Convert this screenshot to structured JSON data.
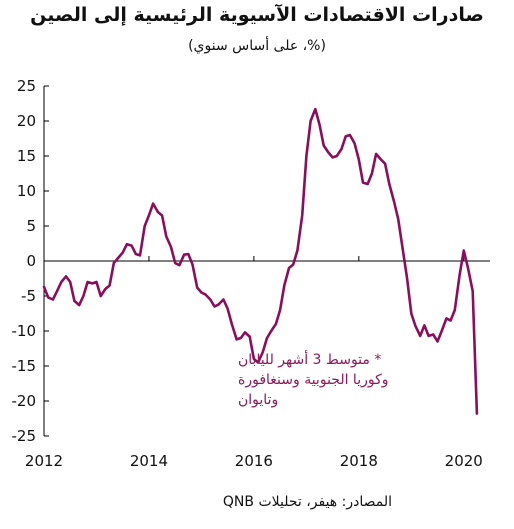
{
  "title": "صادرات الاقتصادات الآسيوية الرئيسية إلى الصين",
  "subtitle": "(%، على أساس سنوي)",
  "source": "المصادر: هيفر، تحليلات QNB",
  "colors": {
    "series": "#8b0e5c",
    "axis": "#000000",
    "annotation": "#8a1a5a"
  },
  "chart_data": {
    "type": "line",
    "title": "صادرات الاقتصادات الآسيوية الرئيسية إلى الصين",
    "subtitle": "(%، على أساس سنوي)",
    "ylim": [
      -25,
      25
    ],
    "xlim": [
      2012,
      2020.5
    ],
    "yticks": [
      25,
      20,
      15,
      10,
      5,
      0,
      -5,
      -10,
      -15,
      -20,
      -25
    ],
    "xticks": [
      2012,
      2014,
      2016,
      2018,
      2020
    ],
    "grid": false,
    "annotation": [
      "* متوسط 3 أشهر لليابان",
      "وكوريا الجنوبية وسنغافورة",
      "وتايوان"
    ],
    "series": [
      {
        "x": [
          2012.0,
          2012.08,
          2012.17,
          2012.25,
          2012.33,
          2012.42,
          2012.5,
          2012.58,
          2012.67,
          2012.75,
          2012.83,
          2012.92,
          2013.0,
          2013.08,
          2013.17,
          2013.25,
          2013.33,
          2013.42,
          2013.5,
          2013.58,
          2013.67,
          2013.75,
          2013.83,
          2013.92,
          2014.0,
          2014.08,
          2014.17,
          2014.25,
          2014.33,
          2014.42,
          2014.5,
          2014.58,
          2014.67,
          2014.75,
          2014.83,
          2014.92,
          2015.0,
          2015.08,
          2015.17,
          2015.25,
          2015.33,
          2015.42,
          2015.5,
          2015.58,
          2015.67,
          2015.75,
          2015.83,
          2015.92,
          2016.0,
          2016.08,
          2016.17,
          2016.25,
          2016.33,
          2016.42,
          2016.5,
          2016.58,
          2016.67,
          2016.75,
          2016.83,
          2016.92,
          2017.0,
          2017.08,
          2017.17,
          2017.25,
          2017.33,
          2017.42,
          2017.5,
          2017.58,
          2017.67,
          2017.75,
          2017.83,
          2017.92,
          2018.0,
          2018.08,
          2018.17,
          2018.25,
          2018.33,
          2018.42,
          2018.5,
          2018.58,
          2018.67,
          2018.75,
          2018.83,
          2018.92,
          2019.0,
          2019.08,
          2019.17,
          2019.25,
          2019.33,
          2019.42,
          2019.5,
          2019.58,
          2019.67,
          2019.75,
          2019.83,
          2019.92,
          2020.0,
          2020.08,
          2020.17,
          2020.25
        ],
        "values": [
          -3.7,
          -5.2,
          -5.5,
          -4.3,
          -3.0,
          -2.2,
          -3.0,
          -5.7,
          -6.3,
          -5.0,
          -3.0,
          -3.2,
          -3.0,
          -5.0,
          -4.0,
          -3.5,
          -0.3,
          0.5,
          1.2,
          2.4,
          2.2,
          1.0,
          0.8,
          5.0,
          6.5,
          8.2,
          7.0,
          6.5,
          3.5,
          2.0,
          -0.3,
          -0.6,
          0.9,
          1.0,
          -0.5,
          -3.8,
          -4.5,
          -4.8,
          -5.5,
          -6.5,
          -6.2,
          -5.5,
          -6.8,
          -9.0,
          -11.2,
          -11.0,
          -10.2,
          -10.8,
          -14.0,
          -14.5,
          -13.0,
          -11.0,
          -10.0,
          -9.0,
          -7.0,
          -3.5,
          -1.0,
          -0.5,
          1.5,
          6.5,
          15.0,
          20.0,
          21.7,
          19.5,
          16.5,
          15.5,
          14.8,
          15.0,
          16.0,
          17.8,
          18.0,
          16.8,
          14.5,
          11.2,
          11.0,
          12.5,
          15.3,
          14.5,
          13.9,
          11.0,
          8.5,
          6.0,
          2.0,
          -2.5,
          -7.5,
          -9.3,
          -10.7,
          -9.2,
          -10.7,
          -10.5,
          -11.5,
          -10.0,
          -8.2,
          -8.5,
          -7.0,
          -2.0,
          1.5,
          -1.0,
          -4.3,
          -21.8
        ]
      }
    ]
  }
}
